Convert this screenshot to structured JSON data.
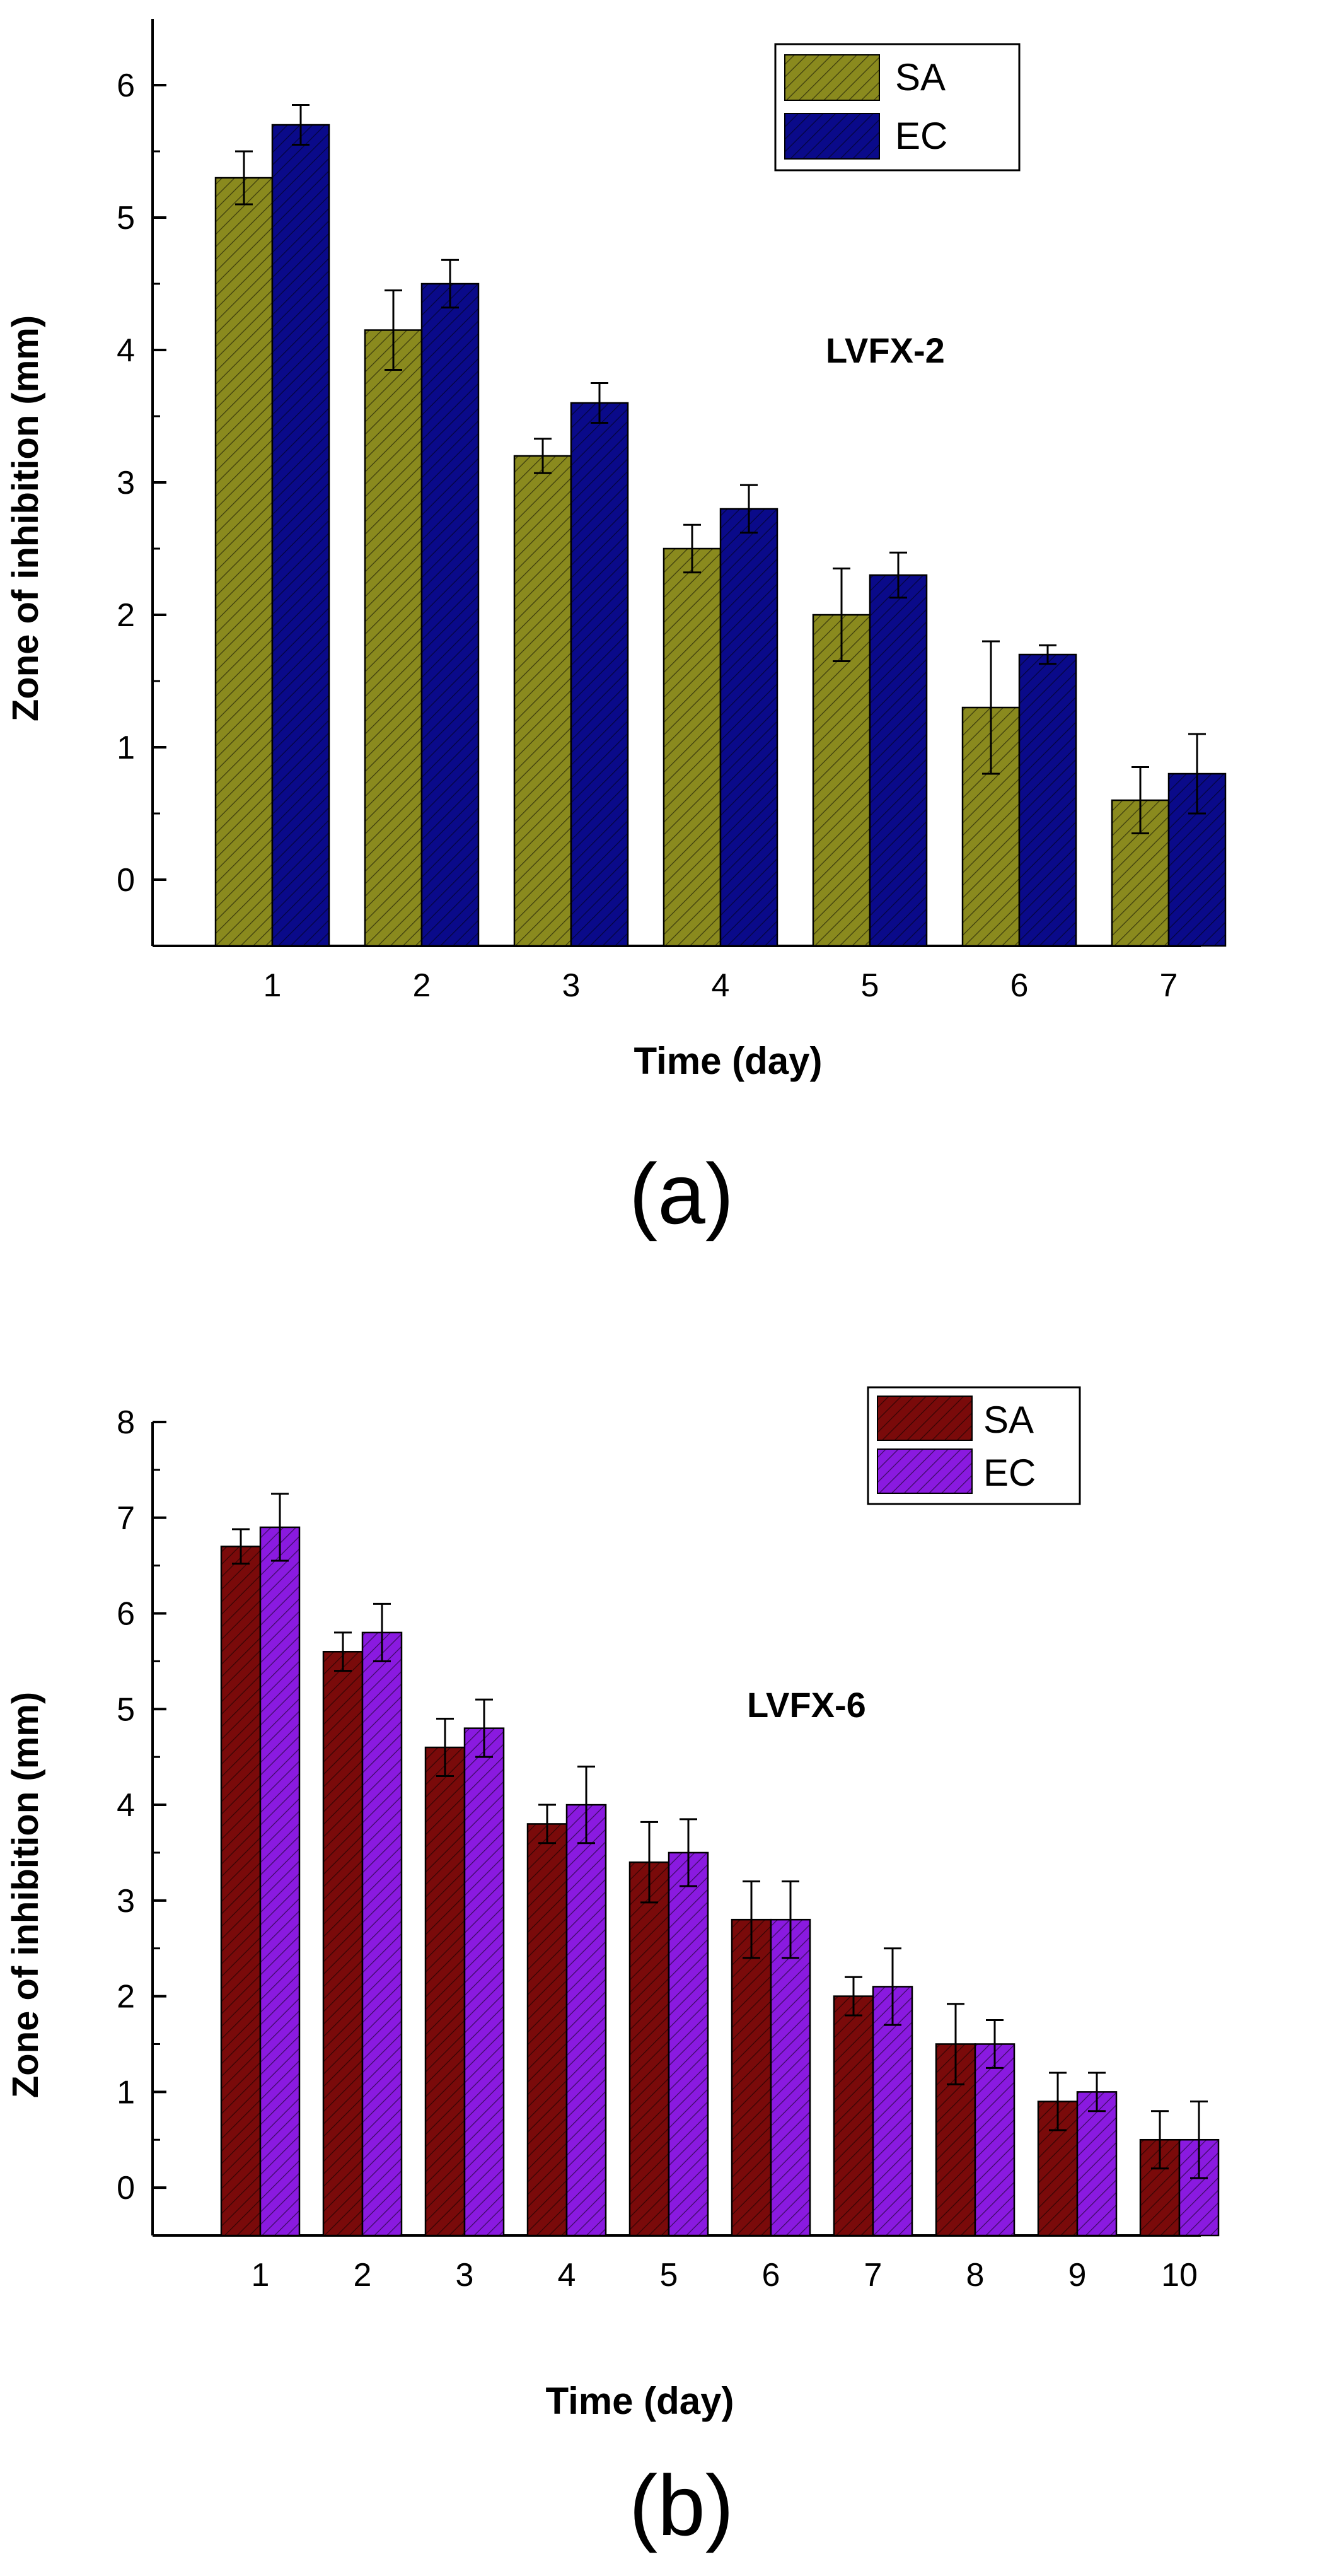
{
  "panels": [
    {
      "label": "(a)",
      "annotation": "LVFX-2",
      "legend": [
        "SA",
        "EC"
      ],
      "xlabel": "Time (day)",
      "ylabel": "Zone of inhibition (mm)"
    },
    {
      "label": "(b)",
      "annotation": "LVFX-6",
      "legend": [
        "SA",
        "EC"
      ],
      "xlabel": "Time (day)",
      "ylabel": "Zone of inhibition (mm)"
    }
  ],
  "chart_data": [
    {
      "type": "bar",
      "panel_label": "(a)",
      "annotation": "LVFX-2",
      "xlabel": "Time (day)",
      "ylabel": "Zone of inhibition (mm)",
      "categories": [
        "1",
        "2",
        "3",
        "4",
        "5",
        "6",
        "7"
      ],
      "ylim": [
        -0.5,
        6.5
      ],
      "yticks": [
        0,
        1,
        2,
        3,
        4,
        5,
        6
      ],
      "grid": false,
      "legend_position": "top-right",
      "series": [
        {
          "name": "SA",
          "color": "#8a8a1e",
          "pattern": "diagonal-hatch",
          "values": [
            5.3,
            4.15,
            3.2,
            2.5,
            2.0,
            1.3,
            0.6
          ],
          "errors": [
            0.2,
            0.3,
            0.13,
            0.18,
            0.35,
            0.5,
            0.25
          ]
        },
        {
          "name": "EC",
          "color": "#0a0a8a",
          "pattern": "diagonal-hatch",
          "values": [
            5.7,
            4.5,
            3.6,
            2.8,
            2.3,
            1.7,
            0.8
          ],
          "errors": [
            0.15,
            0.18,
            0.15,
            0.18,
            0.17,
            0.07,
            0.3
          ]
        }
      ]
    },
    {
      "type": "bar",
      "panel_label": "(b)",
      "annotation": "LVFX-6",
      "xlabel": "Time (day)",
      "ylabel": "Zone of inhibition (mm)",
      "categories": [
        "1",
        "2",
        "3",
        "4",
        "5",
        "6",
        "7",
        "8",
        "9",
        "10"
      ],
      "ylim": [
        -0.5,
        8
      ],
      "yticks": [
        0,
        1,
        2,
        3,
        4,
        5,
        6,
        7,
        8
      ],
      "grid": false,
      "legend_position": "top-right",
      "series": [
        {
          "name": "SA",
          "color": "#7a0a0a",
          "pattern": "diagonal-hatch",
          "values": [
            6.7,
            5.6,
            4.6,
            3.8,
            3.4,
            2.8,
            2.0,
            1.5,
            0.9,
            0.5
          ],
          "errors": [
            0.18,
            0.2,
            0.3,
            0.2,
            0.42,
            0.4,
            0.2,
            0.42,
            0.3,
            0.3
          ]
        },
        {
          "name": "EC",
          "color": "#8a1ae0",
          "pattern": "diagonal-hatch",
          "values": [
            6.9,
            5.8,
            4.8,
            4.0,
            3.5,
            2.8,
            2.1,
            1.5,
            1.0,
            0.5
          ],
          "errors": [
            0.35,
            0.3,
            0.3,
            0.4,
            0.35,
            0.4,
            0.4,
            0.25,
            0.2,
            0.4
          ]
        }
      ]
    }
  ]
}
